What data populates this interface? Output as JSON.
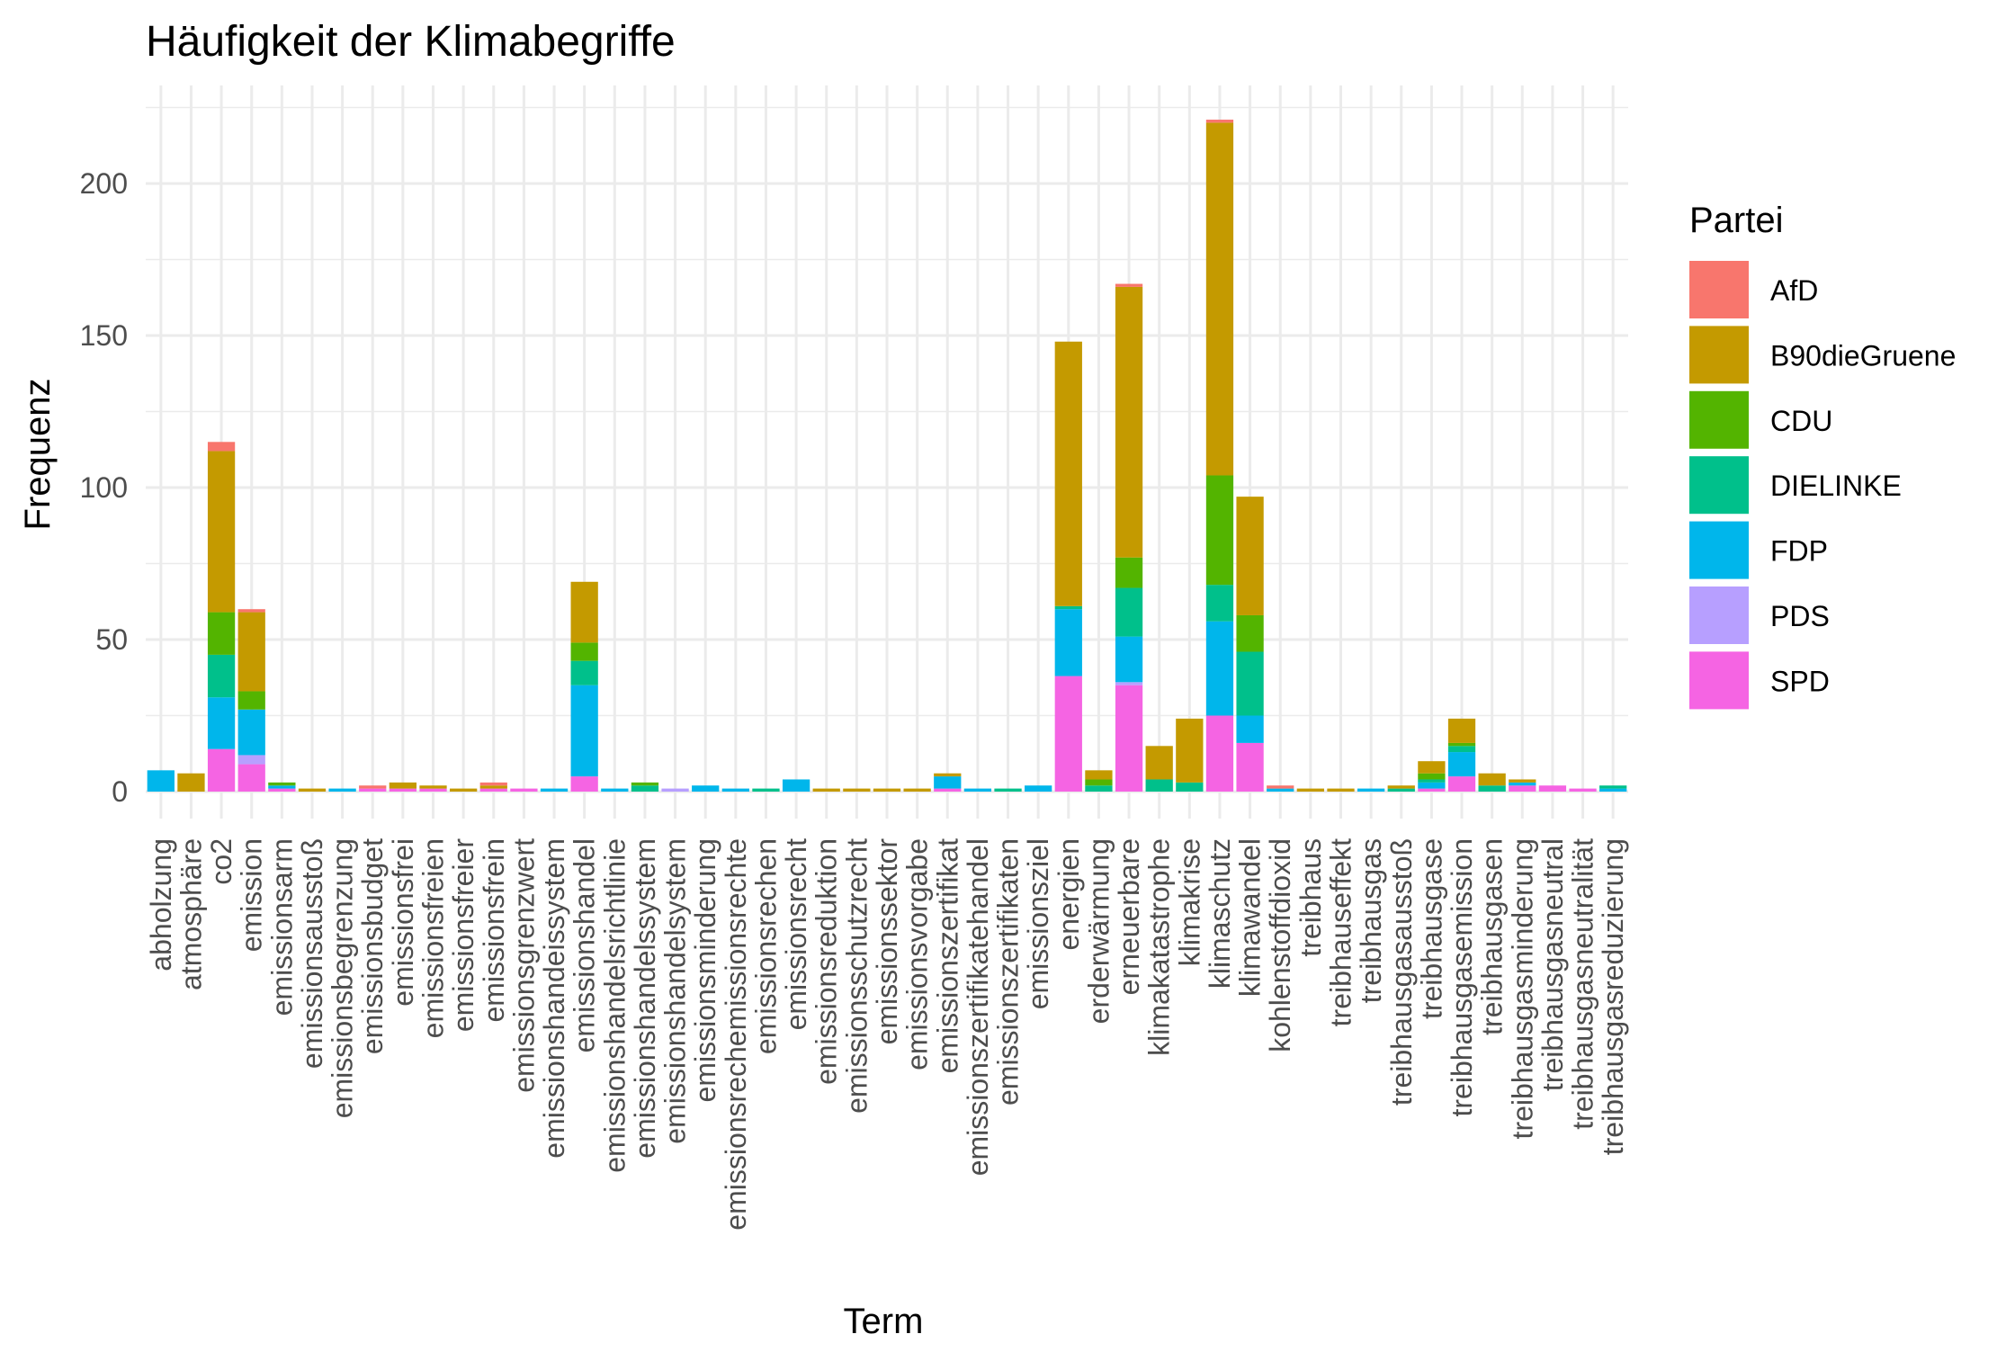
{
  "chart_data": {
    "type": "bar",
    "stacked": true,
    "title": "Häufigkeit der Klimabegriffe",
    "xlabel": "Term",
    "ylabel": "Frequenz",
    "ylim": [
      0,
      225
    ],
    "yticks": [
      0,
      50,
      100,
      150,
      200
    ],
    "grid": true,
    "legend": {
      "title": "Partei",
      "placement": "right"
    },
    "categories": [
      "abholzung",
      "atmosphäre",
      "co2",
      "emission",
      "emissionsarm",
      "emissionsausstoß",
      "emissionsbegrenzung",
      "emissionsbudget",
      "emissionsfrei",
      "emissionsfreien",
      "emissionsfreier",
      "emissionsfrein",
      "emissionsgrenzwert",
      "emissionshandeissystem",
      "emissionshandel",
      "emissionshandelsrichtlinie",
      "emissionshandelssystem",
      "emissionshandelsystem",
      "emissionsminderung",
      "emissionsrechemissionsrechte",
      "emissionsrechen",
      "emissionsrecht",
      "emissionsreduktion",
      "emissionsschutzrecht",
      "emissionssektor",
      "emissionsvorgabe",
      "emissionszertifikat",
      "emissionszertifikatehandel",
      "emissionszertifikaten",
      "emissionsziel",
      "energien",
      "erderwärmung",
      "erneuerbare",
      "klimakatastrophe",
      "klimakrise",
      "klimaschutz",
      "klimawandel",
      "kohlenstoffdioxid",
      "treibhaus",
      "treibhauseffekt",
      "treibhausgas",
      "treibhausgasausstoß",
      "treibhausgase",
      "treibhausgasemission",
      "treibhausgasen",
      "treibhausgasminderung",
      "treibhausgasneutral",
      "treibhausgasneutralität",
      "treibhausgasreduzierung"
    ],
    "series": [
      {
        "name": "SPD",
        "color": "#F564E3",
        "values": [
          0,
          0,
          14,
          9,
          1,
          0,
          0,
          1,
          1,
          1,
          0,
          1,
          1,
          0,
          5,
          0,
          0,
          0,
          0,
          0,
          0,
          0,
          0,
          0,
          0,
          0,
          1,
          0,
          0,
          0,
          38,
          0,
          35,
          0,
          0,
          25,
          16,
          0,
          0,
          0,
          0,
          0,
          1,
          5,
          0,
          2,
          2,
          1,
          0
        ]
      },
      {
        "name": "PDS",
        "color": "#B79FFF",
        "values": [
          0,
          0,
          0,
          3,
          0,
          0,
          0,
          0,
          0,
          0,
          0,
          0,
          0,
          0,
          0,
          0,
          0,
          1,
          0,
          0,
          0,
          0,
          0,
          0,
          0,
          0,
          0,
          0,
          0,
          0,
          0,
          0,
          1,
          0,
          0,
          0,
          0,
          0,
          0,
          0,
          0,
          0,
          0,
          0,
          0,
          0,
          0,
          0,
          0
        ]
      },
      {
        "name": "FDP",
        "color": "#00B6EB",
        "values": [
          7,
          0,
          17,
          15,
          1,
          0,
          1,
          0,
          0,
          0,
          0,
          0,
          0,
          1,
          30,
          1,
          0,
          0,
          2,
          1,
          0,
          4,
          0,
          0,
          0,
          0,
          4,
          1,
          0,
          2,
          22,
          0,
          15,
          0,
          0,
          31,
          9,
          1,
          0,
          0,
          1,
          0,
          2,
          8,
          0,
          1,
          0,
          0,
          1
        ]
      },
      {
        "name": "DIELINKE",
        "color": "#00C08B",
        "values": [
          0,
          0,
          14,
          0,
          0,
          0,
          0,
          0,
          0,
          0,
          0,
          0,
          0,
          0,
          8,
          0,
          2,
          0,
          0,
          0,
          1,
          0,
          0,
          0,
          0,
          0,
          0,
          0,
          1,
          0,
          1,
          2,
          16,
          4,
          3,
          12,
          21,
          0,
          0,
          0,
          0,
          1,
          1,
          2,
          2,
          0,
          0,
          0,
          1
        ]
      },
      {
        "name": "CDU",
        "color": "#53B400",
        "values": [
          0,
          0,
          14,
          6,
          1,
          0,
          0,
          0,
          0,
          0,
          0,
          0,
          0,
          0,
          6,
          0,
          1,
          0,
          0,
          0,
          0,
          0,
          0,
          0,
          0,
          0,
          0,
          0,
          0,
          0,
          0,
          2,
          10,
          0,
          0,
          36,
          12,
          0,
          0,
          0,
          0,
          0,
          2,
          1,
          0,
          0,
          0,
          0,
          0
        ]
      },
      {
        "name": "B90dieGruene",
        "color": "#C49A00",
        "values": [
          0,
          6,
          53,
          26,
          0,
          1,
          0,
          0,
          2,
          1,
          1,
          1,
          0,
          0,
          20,
          0,
          0,
          0,
          0,
          0,
          0,
          0,
          1,
          1,
          1,
          1,
          1,
          0,
          0,
          0,
          87,
          3,
          89,
          11,
          21,
          116,
          39,
          0,
          1,
          1,
          0,
          1,
          4,
          8,
          4,
          1,
          0,
          0,
          0
        ]
      },
      {
        "name": "AfD",
        "color": "#F8766D",
        "values": [
          0,
          0,
          3,
          1,
          0,
          0,
          0,
          1,
          0,
          0,
          0,
          1,
          0,
          0,
          0,
          0,
          0,
          0,
          0,
          0,
          0,
          0,
          0,
          0,
          0,
          0,
          0,
          0,
          0,
          0,
          0,
          0,
          1,
          0,
          0,
          1,
          0,
          1,
          0,
          0,
          0,
          0,
          0,
          0,
          0,
          0,
          0,
          0,
          0
        ]
      }
    ]
  },
  "legend_order": [
    "AfD",
    "B90dieGruene",
    "CDU",
    "DIELINKE",
    "FDP",
    "PDS",
    "SPD"
  ]
}
